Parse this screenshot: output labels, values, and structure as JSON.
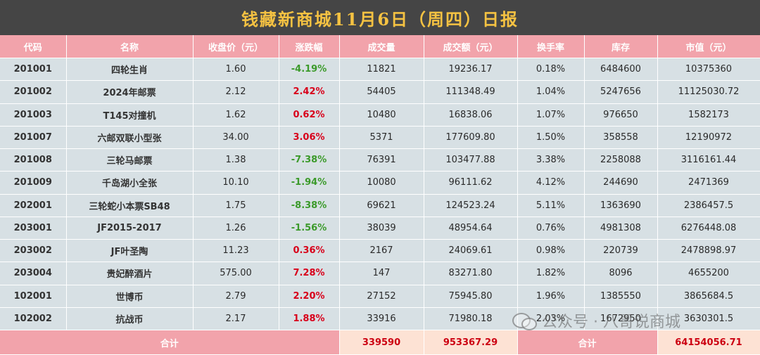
{
  "title": "钱藏新商城11月6日（周四）日报",
  "headers": [
    "代码",
    "名称",
    "收盘价（元）",
    "涨跌幅",
    "成交量",
    "成交额（元）",
    "换手率",
    "库存",
    "市值（元）"
  ],
  "rows": [
    {
      "code": "201001",
      "name": "四轮生肖",
      "close": "1.60",
      "change": "-4.19%",
      "dir": "down",
      "volume": "11821",
      "amount": "19236.17",
      "turnover": "0.18%",
      "stock": "6484600",
      "cap": "10375360"
    },
    {
      "code": "201002",
      "name": "2024年邮票",
      "close": "2.12",
      "change": "2.42%",
      "dir": "up",
      "volume": "54405",
      "amount": "111348.49",
      "turnover": "1.04%",
      "stock": "5247656",
      "cap": "11125030.72"
    },
    {
      "code": "201003",
      "name": "T145对撞机",
      "close": "1.62",
      "change": "0.62%",
      "dir": "up",
      "volume": "10480",
      "amount": "16838.06",
      "turnover": "1.07%",
      "stock": "976650",
      "cap": "1582173"
    },
    {
      "code": "201007",
      "name": "六邮双联小型张",
      "close": "34.00",
      "change": "3.06%",
      "dir": "up",
      "volume": "5371",
      "amount": "177609.80",
      "turnover": "1.50%",
      "stock": "358558",
      "cap": "12190972"
    },
    {
      "code": "201008",
      "name": "三轮马邮票",
      "close": "1.38",
      "change": "-7.38%",
      "dir": "down",
      "volume": "76391",
      "amount": "103477.88",
      "turnover": "3.38%",
      "stock": "2258088",
      "cap": "3116161.44"
    },
    {
      "code": "201009",
      "name": "千岛湖小全张",
      "close": "10.10",
      "change": "-1.94%",
      "dir": "down",
      "volume": "10080",
      "amount": "96111.62",
      "turnover": "4.12%",
      "stock": "244690",
      "cap": "2471369"
    },
    {
      "code": "202001",
      "name": "三轮蛇小本票SB48",
      "close": "1.75",
      "change": "-8.38%",
      "dir": "down",
      "volume": "69621",
      "amount": "124523.24",
      "turnover": "5.11%",
      "stock": "1363690",
      "cap": "2386457.5"
    },
    {
      "code": "203001",
      "name": "JF2015-2017",
      "close": "1.26",
      "change": "-1.56%",
      "dir": "down",
      "volume": "38039",
      "amount": "48954.64",
      "turnover": "0.76%",
      "stock": "4981308",
      "cap": "6276448.08"
    },
    {
      "code": "203002",
      "name": "JF叶圣陶",
      "close": "11.23",
      "change": "0.36%",
      "dir": "up",
      "volume": "2167",
      "amount": "24069.61",
      "turnover": "0.98%",
      "stock": "220739",
      "cap": "2478898.97"
    },
    {
      "code": "203004",
      "name": "贵妃醉酒片",
      "close": "575.00",
      "change": "7.28%",
      "dir": "up",
      "volume": "147",
      "amount": "83271.80",
      "turnover": "1.82%",
      "stock": "8096",
      "cap": "4655200"
    },
    {
      "code": "102001",
      "name": "世博币",
      "close": "2.79",
      "change": "2.20%",
      "dir": "up",
      "volume": "27152",
      "amount": "75945.80",
      "turnover": "1.96%",
      "stock": "1385550",
      "cap": "3865684.5"
    },
    {
      "code": "102002",
      "name": "抗战币",
      "close": "2.17",
      "change": "1.88%",
      "dir": "up",
      "volume": "33916",
      "amount": "71980.18",
      "turnover": "2.03%",
      "stock": "1672950",
      "cap": "3630301.5"
    }
  ],
  "footer": {
    "label": "合计",
    "volume_total": "339590",
    "amount_total": "953367.29",
    "label2": "合计",
    "cap_total": "64154056.71"
  },
  "watermark": "公众号 · 八哥说商城",
  "colors": {
    "title_bg": "#454545",
    "title_text": "#f5c242",
    "header_bg": "#f2a3ab",
    "row_bg": "#d7e0e4",
    "up": "#d8001a",
    "down": "#3b9a2a",
    "total_bg": "#fde2d4"
  }
}
